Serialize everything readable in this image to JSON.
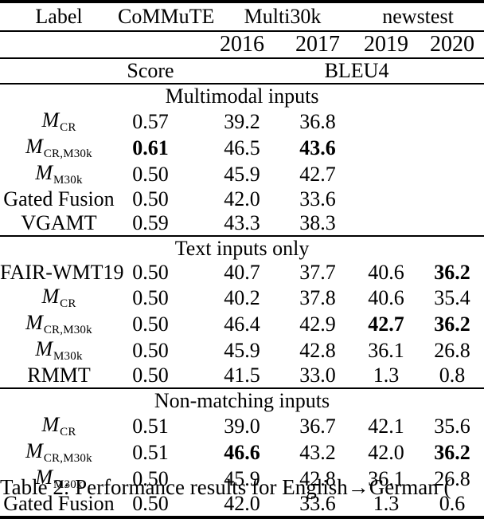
{
  "table": {
    "header": {
      "label_col": "Label",
      "commute_col": "CoMMuTE",
      "multi30k_group": "Multi30k",
      "newstest_group": "newstest",
      "years": [
        "2016",
        "2017",
        "2019",
        "2020"
      ],
      "score_label": "Score",
      "bleu_label": "BLEU4"
    },
    "sections": [
      {
        "title": "Multimodal inputs",
        "rows": [
          {
            "label": {
              "main": "M",
              "sub": "CR"
            },
            "values": [
              "0.57",
              "39.2",
              "36.8",
              "",
              ""
            ],
            "bold": []
          },
          {
            "label": {
              "main": "M",
              "sub": "CR,M30k"
            },
            "values": [
              "0.61",
              "46.5",
              "43.6",
              "",
              ""
            ],
            "bold": [
              0,
              2
            ]
          },
          {
            "label": {
              "main": "M",
              "sub": "M30k"
            },
            "values": [
              "0.50",
              "45.9",
              "42.7",
              "",
              ""
            ],
            "bold": []
          },
          {
            "label": {
              "text": "Gated Fusion",
              "small": true
            },
            "values": [
              "0.50",
              "42.0",
              "33.6",
              "",
              ""
            ],
            "bold": []
          },
          {
            "label": {
              "text": "VGAMT"
            },
            "values": [
              "0.59",
              "43.3",
              "38.3",
              "",
              ""
            ],
            "bold": []
          }
        ]
      },
      {
        "title": "Text inputs only",
        "rows": [
          {
            "label": {
              "text": "FAIR-WMT19",
              "small": true
            },
            "values": [
              "0.50",
              "40.7",
              "37.7",
              "40.6",
              "36.2"
            ],
            "bold": [
              4
            ]
          },
          {
            "label": {
              "main": "M",
              "sub": "CR"
            },
            "values": [
              "0.50",
              "40.2",
              "37.8",
              "40.6",
              "35.4"
            ],
            "bold": []
          },
          {
            "label": {
              "main": "M",
              "sub": "CR,M30k"
            },
            "values": [
              "0.50",
              "46.4",
              "42.9",
              "42.7",
              "36.2"
            ],
            "bold": [
              3,
              4
            ]
          },
          {
            "label": {
              "main": "M",
              "sub": "M30k"
            },
            "values": [
              "0.50",
              "45.9",
              "42.8",
              "36.1",
              "26.8"
            ],
            "bold": []
          },
          {
            "label": {
              "text": "RMMT"
            },
            "values": [
              "0.50",
              "41.5",
              "33.0",
              "1.3",
              "0.8"
            ],
            "bold": []
          }
        ]
      },
      {
        "title": "Non-matching inputs",
        "rows": [
          {
            "label": {
              "main": "M",
              "sub": "CR"
            },
            "values": [
              "0.51",
              "39.0",
              "36.7",
              "42.1",
              "35.6"
            ],
            "bold": []
          },
          {
            "label": {
              "main": "M",
              "sub": "CR,M30k"
            },
            "values": [
              "0.51",
              "46.6",
              "43.2",
              "42.0",
              "36.2"
            ],
            "bold": [
              1,
              4
            ]
          },
          {
            "label": {
              "main": "M",
              "sub": "M30k"
            },
            "values": [
              "0.50",
              "45.9",
              "42.8",
              "36.1",
              "26.8"
            ],
            "bold": []
          },
          {
            "label": {
              "text": "Gated Fusion",
              "small": true
            },
            "values": [
              "0.50",
              "42.0",
              "33.6",
              "1.3",
              "0.6"
            ],
            "bold": []
          }
        ]
      }
    ]
  },
  "caption": "Table 2: Performance results for English→German ("
}
